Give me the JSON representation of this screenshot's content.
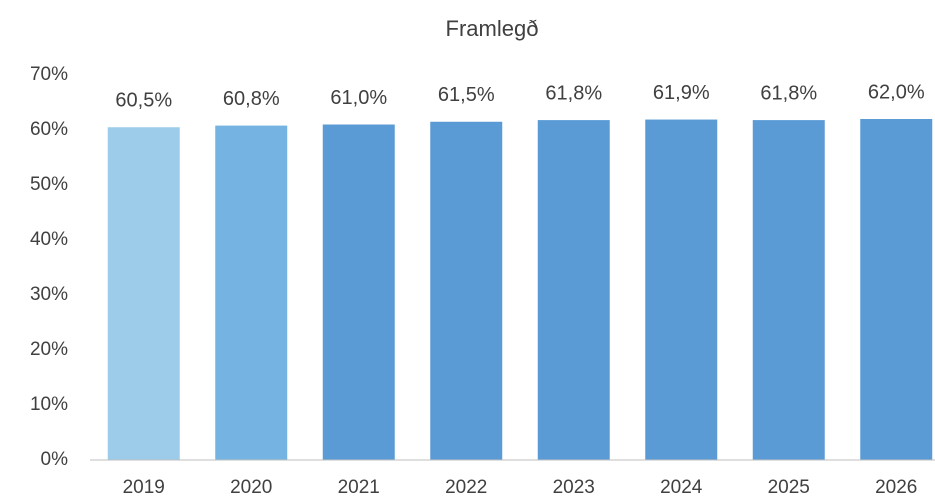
{
  "chart_data": {
    "type": "bar",
    "title": "Framlegð",
    "categories": [
      "2019",
      "2020",
      "2021",
      "2022",
      "2023",
      "2024",
      "2025",
      "2026"
    ],
    "values": [
      60.5,
      60.8,
      61.0,
      61.5,
      61.8,
      61.9,
      61.8,
      62.0
    ],
    "value_labels": [
      "60,5%",
      "60,8%",
      "61,0%",
      "61,5%",
      "61,8%",
      "61,9%",
      "61,8%",
      "62,0%"
    ],
    "colors": [
      "#9dcbea",
      "#75b4e2",
      "#5b9bd5",
      "#5b9bd5",
      "#5b9bd5",
      "#5b9bd5",
      "#5b9bd5",
      "#5b9bd5"
    ],
    "ylim": [
      0,
      70
    ],
    "yticks": [
      {
        "value": 0,
        "label": "0%"
      },
      {
        "value": 10,
        "label": "10%"
      },
      {
        "value": 20,
        "label": "20%"
      },
      {
        "value": 30,
        "label": "30%"
      },
      {
        "value": 40,
        "label": "40%"
      },
      {
        "value": 50,
        "label": "50%"
      },
      {
        "value": 60,
        "label": "60%"
      },
      {
        "value": 70,
        "label": "70%"
      }
    ],
    "grid": false
  }
}
